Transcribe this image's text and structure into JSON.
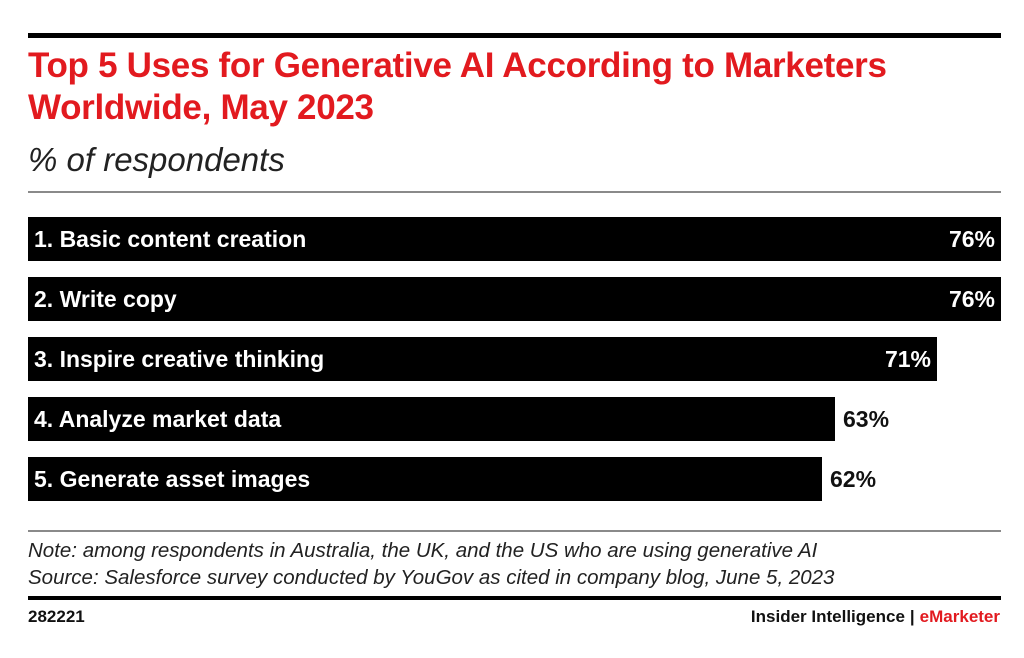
{
  "title": "Top 5 Uses for Generative AI According to Marketers Worldwide, May 2023",
  "subtitle": "% of respondents",
  "chart_data": {
    "type": "bar",
    "orientation": "horizontal",
    "title": "Top 5 Uses for Generative AI According to Marketers Worldwide, May 2023",
    "ylabel": "% of respondents",
    "categories": [
      "1. Basic content creation",
      "2. Write copy",
      "3. Inspire creative thinking",
      "4. Analyze market data",
      "5. Generate asset images"
    ],
    "values": [
      76,
      76,
      71,
      63,
      62
    ],
    "value_labels": [
      "76%",
      "76%",
      "71%",
      "63%",
      "62%"
    ],
    "xlim": [
      0,
      76
    ],
    "grid": false,
    "legend": "none",
    "bar_color": "#000000"
  },
  "footer": {
    "note": "Note: among respondents in Australia, the UK, and the US who are using generative AI",
    "source": "Source: Salesforce survey conducted by YouGov as cited in company blog, June 5, 2023",
    "chart_id": "282221",
    "brand_primary": "Insider Intelligence",
    "brand_separator": "|",
    "brand_secondary": "eMarketer"
  },
  "colors": {
    "title": "#e21a1f",
    "bar": "#000000",
    "label_on_bar": "#ffffff",
    "label_off_bar": "#111111",
    "accent": "#e21a1f"
  }
}
